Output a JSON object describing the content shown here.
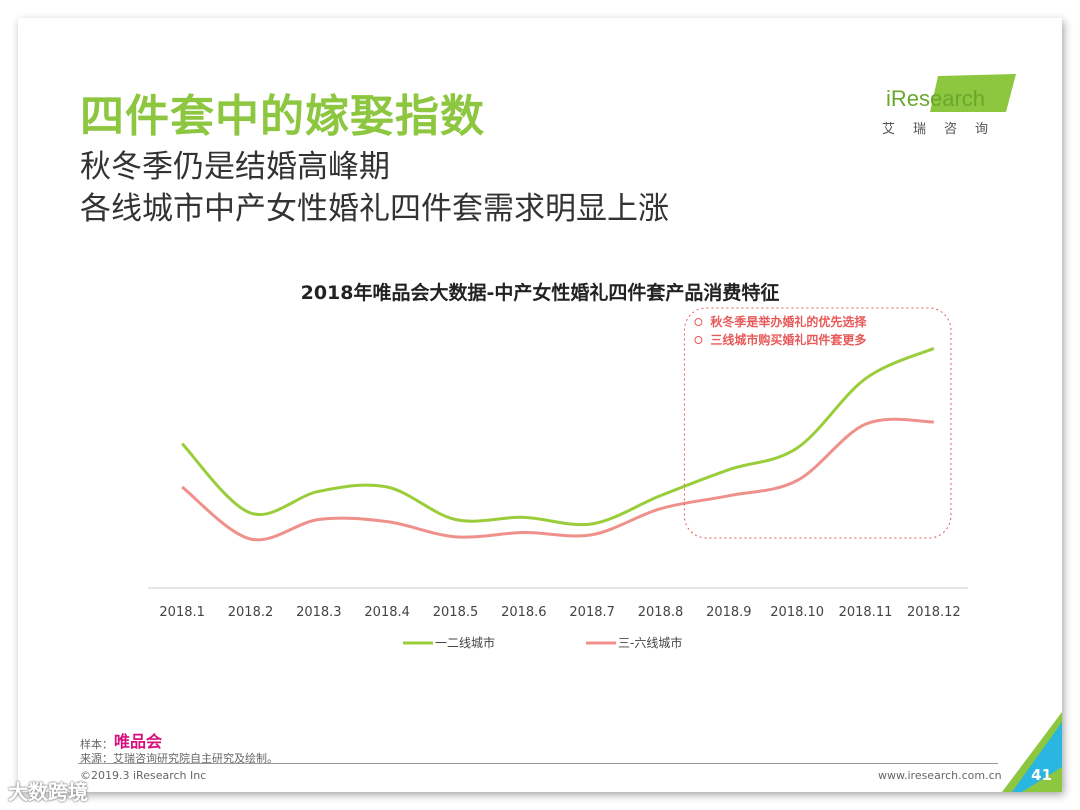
{
  "header": {
    "title": "四件套中的嫁娶指数",
    "subtitle_line1": "秋冬季仍是结婚高峰期",
    "subtitle_line2": "各线城市中产女性婚礼四件套需求明显上涨"
  },
  "logo": {
    "brand": "iResearch",
    "chinese": "艾瑞咨询"
  },
  "colors": {
    "accent": "#8dc63f",
    "series1": "#9acd3a",
    "series2": "#f0908a",
    "annotation": "#e85a5a",
    "vip": "#d6117e"
  },
  "chart_data": {
    "type": "line",
    "title": "2018年唯品会大数据-中产女性婚礼四件套产品消费特征",
    "categories": [
      "2018.1",
      "2018.2",
      "2018.3",
      "2018.4",
      "2018.5",
      "2018.6",
      "2018.7",
      "2018.8",
      "2018.9",
      "2018.10",
      "2018.11",
      "2018.12"
    ],
    "series": [
      {
        "name": "一二线城市",
        "values": [
          62,
          30,
          40,
          42,
          27,
          28,
          25,
          38,
          50,
          60,
          92,
          106
        ]
      },
      {
        "name": "三-六线城市",
        "values": [
          42,
          18,
          27,
          26,
          19,
          21,
          20,
          32,
          38,
          45,
          71,
          72
        ]
      }
    ],
    "ylim": [
      0,
      120
    ],
    "grid": false,
    "legend": "bottom",
    "annotations": [
      "秋冬季是举办婚礼的优先选择",
      "三线城市购买婚礼四件套更多"
    ]
  },
  "footer": {
    "sample_label": "样本：",
    "sample_value": "唯品会",
    "source": "来源：艾瑞咨询研究院自主研究及绘制。",
    "copyright": "©2019.3 iResearch Inc",
    "website": "www.iresearch.com.cn",
    "page": "41"
  },
  "watermark": "大数跨境"
}
